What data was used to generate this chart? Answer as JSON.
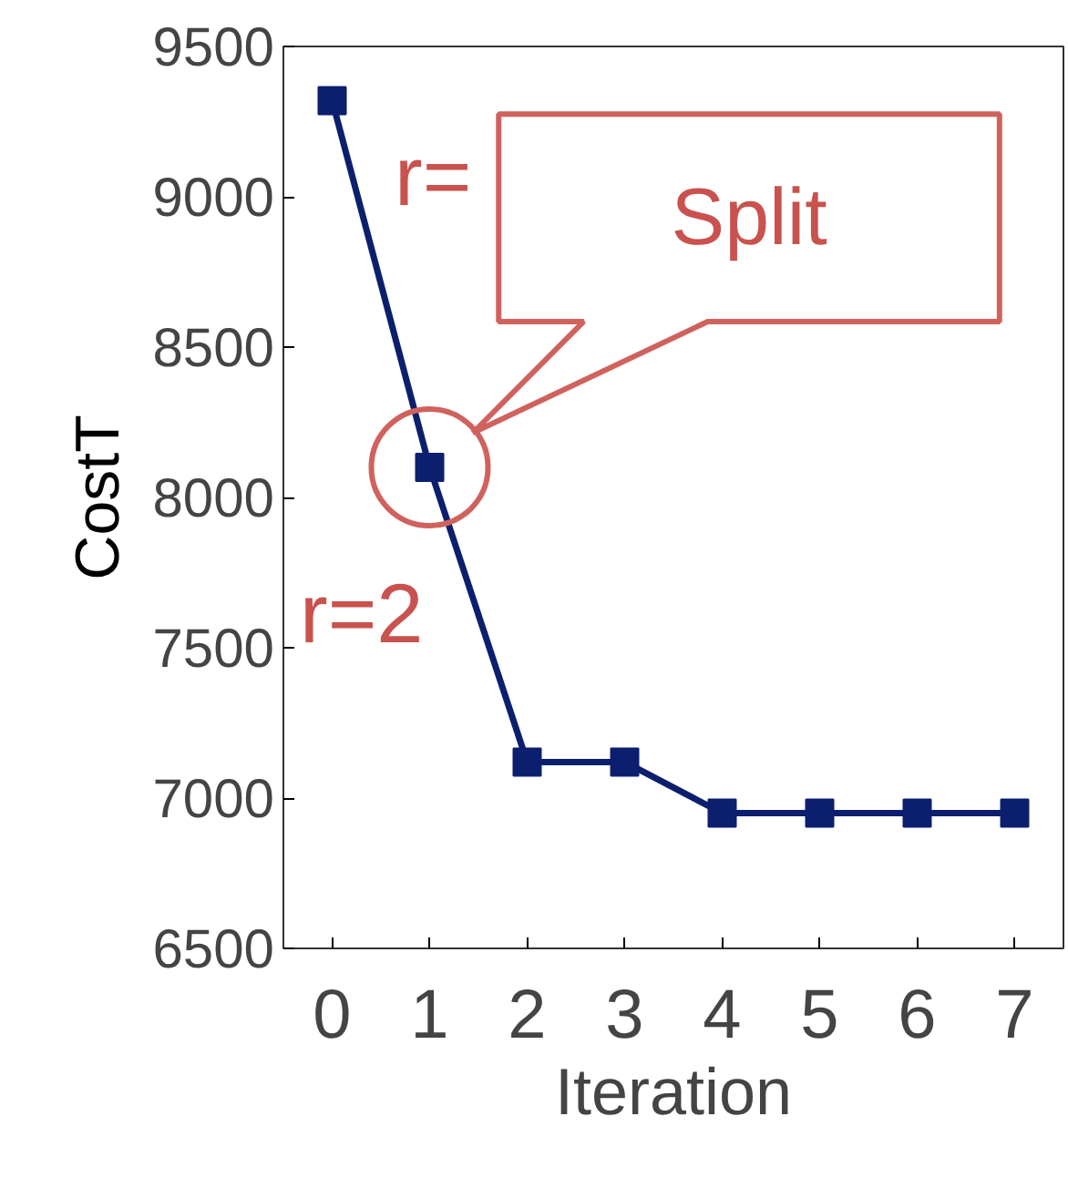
{
  "chart_data": {
    "type": "line",
    "xlabel": "Iteration",
    "ylabel": "CostT",
    "x": [
      0,
      1,
      2,
      3,
      4,
      5,
      6,
      7
    ],
    "series": [
      {
        "color": "#0c1f6e",
        "values": [
          9320,
          8100,
          7120,
          7120,
          6950,
          6950,
          6950,
          6950
        ]
      },
      {
        "type": "scatter",
        "marker": "circle",
        "color": "#d0625e",
        "x": [
          1
        ],
        "values": [
          8100
        ]
      }
    ],
    "xlim": [
      -0.5,
      7.5
    ],
    "xticks": [
      0,
      1,
      2,
      3,
      4,
      5,
      6,
      7
    ],
    "ylim": [
      6500,
      9500
    ],
    "yticks": [
      6500,
      7000,
      7500,
      8000,
      8500,
      9000,
      9500
    ],
    "marker": "square",
    "line_style": "solid",
    "grid": false,
    "annotations": [
      "Split",
      "r=",
      "r=2"
    ]
  }
}
